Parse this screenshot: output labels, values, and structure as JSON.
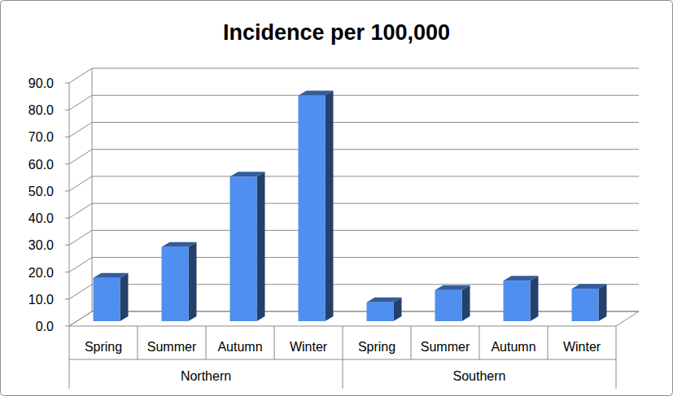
{
  "chart_data": {
    "type": "bar",
    "title": "Incidence per 100,000",
    "categories": [
      "Spring",
      "Summer",
      "Autumn",
      "Winter"
    ],
    "series": [
      {
        "name": "Northern",
        "color": "#4f8fef",
        "values": [
          16.0,
          27.5,
          53.5,
          83.5
        ]
      },
      {
        "name": "Southern",
        "color": "#4f8fef",
        "values": [
          7.0,
          11.5,
          15.0,
          12.0
        ]
      }
    ],
    "ylim": [
      0,
      90
    ],
    "yticks": [
      {
        "value": 0,
        "label": "0.0"
      },
      {
        "value": 10,
        "label": "10.0"
      },
      {
        "value": 20,
        "label": "20.0"
      },
      {
        "value": 30,
        "label": "30.0"
      },
      {
        "value": 40,
        "label": "40.0"
      },
      {
        "value": 50,
        "label": "50.0"
      },
      {
        "value": 60,
        "label": "60.0"
      },
      {
        "value": 70,
        "label": "70.0"
      },
      {
        "value": 80,
        "label": "80.0"
      },
      {
        "value": 90,
        "label": "90.0"
      }
    ],
    "grid": true
  }
}
